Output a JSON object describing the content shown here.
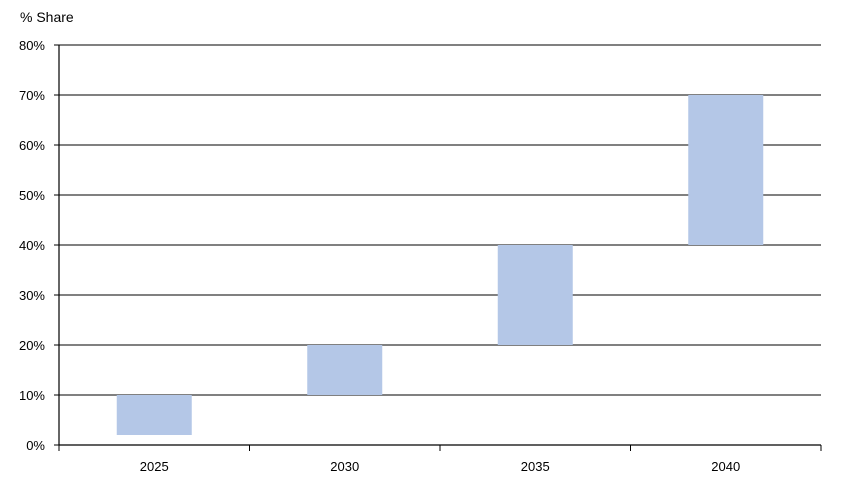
{
  "chart_data": {
    "type": "bar",
    "subtype": "floating-range",
    "title": "",
    "xlabel": "",
    "ylabel": "% Share",
    "categories": [
      "2025",
      "2030",
      "2035",
      "2040"
    ],
    "series": [
      {
        "ranges": [
          [
            2,
            10
          ],
          [
            10,
            20
          ],
          [
            20,
            40
          ],
          [
            40,
            70
          ]
        ],
        "color": "#b4c7e7"
      }
    ],
    "ylim": [
      0,
      80
    ],
    "yticks": [
      0,
      10,
      20,
      30,
      40,
      50,
      60,
      70,
      80
    ],
    "ytick_format": "percent",
    "grid": true,
    "legend": "none"
  }
}
